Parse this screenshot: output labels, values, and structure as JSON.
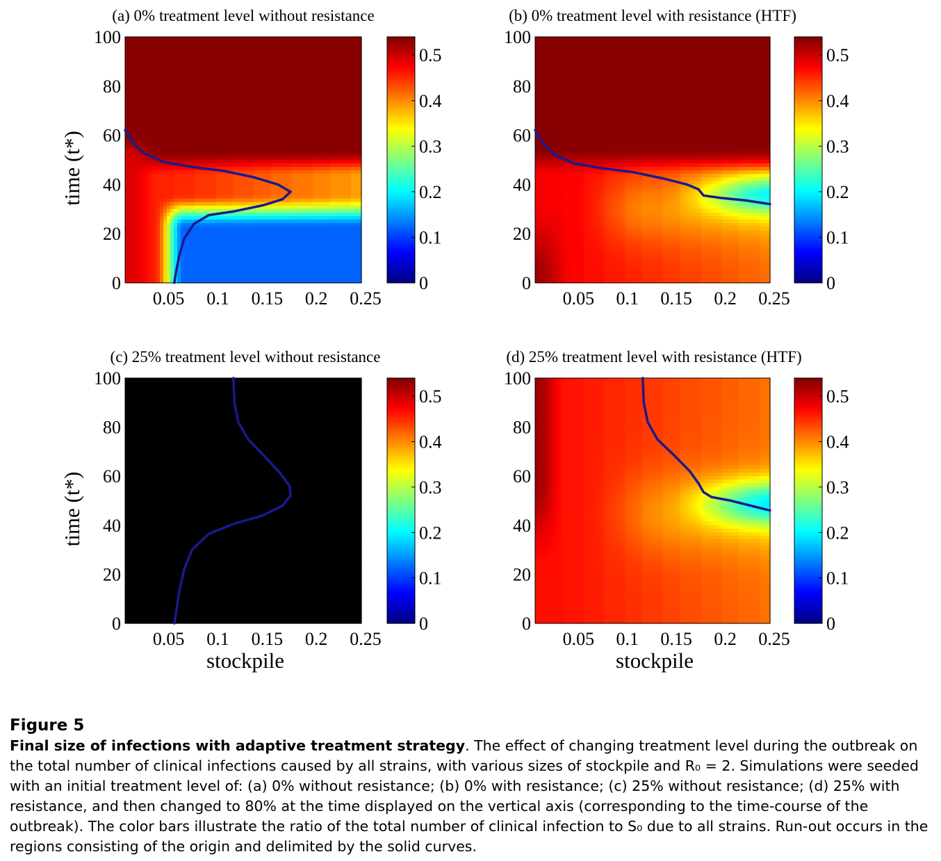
{
  "figure": {
    "label": "Figure 5",
    "caption_title": "Final size of infections with adaptive treatment strategy",
    "caption_text": ". The effect of changing treatment level during the outbreak on the total number of clinical infections caused by all strains, with various sizes of stockpile and R₀ = 2. Simulations were seeded with an initial treatment level of: (a) 0% without resistance; (b) 0% with resistance; (c) 25% without resistance; (d) 25% with resistance, and then changed to 80% at the time displayed on the vertical axis (corresponding to the time-course of the outbreak). The color bars illustrate the ratio of the total number of clinical infection to S₀ due to all strains. Run-out occurs in the regions consisting of the origin and delimited by the solid curves."
  },
  "colors": {
    "curve": "#1a1a8c",
    "colormap": "jet"
  },
  "chart_data": [
    {
      "type": "heatmap",
      "title": "(a) 0% treatment level without resistance",
      "xlabel": "",
      "ylabel": "time (t*)",
      "xlim": [
        0.01,
        0.25
      ],
      "ylim": [
        0,
        100
      ],
      "xticks": [
        "0.05",
        "0.1",
        "0.15",
        "0.2",
        "0.25"
      ],
      "yticks": [
        "0",
        "20",
        "40",
        "60",
        "80",
        "100"
      ],
      "colorbar": {
        "range": [
          0,
          0.54
        ],
        "ticks": [
          "0",
          "0.1",
          "0.2",
          "0.3",
          "0.4",
          "0.5"
        ]
      },
      "runout_curve": [
        [
          0.01,
          62
        ],
        [
          0.02,
          56
        ],
        [
          0.03,
          52.5
        ],
        [
          0.05,
          49
        ],
        [
          0.08,
          47
        ],
        [
          0.11,
          45.5
        ],
        [
          0.14,
          43
        ],
        [
          0.165,
          40
        ],
        [
          0.178,
          37
        ],
        [
          0.17,
          34
        ],
        [
          0.15,
          31.5
        ],
        [
          0.12,
          29
        ],
        [
          0.095,
          27.5
        ],
        [
          0.08,
          24
        ],
        [
          0.07,
          18
        ],
        [
          0.065,
          11
        ],
        [
          0.062,
          5
        ],
        [
          0.06,
          0
        ]
      ]
    },
    {
      "type": "heatmap",
      "title": "(b) 0% treatment level with resistance (HTF)",
      "xlabel": "",
      "ylabel": "",
      "xlim": [
        0.01,
        0.25
      ],
      "ylim": [
        0,
        100
      ],
      "xticks": [
        "0.05",
        "0.1",
        "0.15",
        "0.2",
        "0.25"
      ],
      "yticks": [
        "0",
        "20",
        "40",
        "60",
        "80",
        "100"
      ],
      "colorbar": {
        "range": [
          0,
          0.54
        ],
        "ticks": [
          "0",
          "0.1",
          "0.2",
          "0.3",
          "0.4",
          "0.5"
        ]
      },
      "runout_curve": [
        [
          0.01,
          62
        ],
        [
          0.02,
          56
        ],
        [
          0.03,
          52
        ],
        [
          0.05,
          48.5
        ],
        [
          0.08,
          46.5
        ],
        [
          0.11,
          45
        ],
        [
          0.14,
          42.5
        ],
        [
          0.165,
          40
        ],
        [
          0.177,
          38
        ],
        [
          0.182,
          35.5
        ],
        [
          0.2,
          34.5
        ],
        [
          0.225,
          33.5
        ],
        [
          0.25,
          32
        ]
      ]
    },
    {
      "type": "heatmap",
      "title": "(c) 25% treatment level without resistance",
      "xlabel": "stockpile",
      "ylabel": "time (t*)",
      "xlim": [
        0.01,
        0.25
      ],
      "ylim": [
        0,
        100
      ],
      "xticks": [
        "0.05",
        "0.1",
        "0.15",
        "0.2",
        "0.25"
      ],
      "yticks": [
        "0",
        "20",
        "40",
        "60",
        "80",
        "100"
      ],
      "colorbar": {
        "range": [
          0,
          0.54
        ],
        "ticks": [
          "0",
          "0.1",
          "0.2",
          "0.3",
          "0.4",
          "0.5"
        ]
      },
      "runout_curve": [
        [
          0.12,
          100
        ],
        [
          0.121,
          90
        ],
        [
          0.125,
          82
        ],
        [
          0.135,
          75
        ],
        [
          0.152,
          68
        ],
        [
          0.168,
          61
        ],
        [
          0.177,
          56
        ],
        [
          0.178,
          52
        ],
        [
          0.17,
          48
        ],
        [
          0.15,
          44
        ],
        [
          0.12,
          40.5
        ],
        [
          0.095,
          36.5
        ],
        [
          0.078,
          30
        ],
        [
          0.07,
          22
        ],
        [
          0.065,
          13
        ],
        [
          0.062,
          5
        ],
        [
          0.06,
          0
        ]
      ]
    },
    {
      "type": "heatmap",
      "title": "(d) 25% treatment level with resistance (HTF)",
      "xlabel": "stockpile",
      "ylabel": "",
      "xlim": [
        0.01,
        0.25
      ],
      "ylim": [
        0,
        100
      ],
      "xticks": [
        "0.05",
        "0.1",
        "0.15",
        "0.2",
        "0.25"
      ],
      "yticks": [
        "0",
        "20",
        "40",
        "60",
        "80",
        "100"
      ],
      "colorbar": {
        "range": [
          0,
          0.54
        ],
        "ticks": [
          "0",
          "0.1",
          "0.2",
          "0.3",
          "0.4",
          "0.5"
        ]
      },
      "runout_curve": [
        [
          0.12,
          100
        ],
        [
          0.121,
          90
        ],
        [
          0.125,
          82
        ],
        [
          0.135,
          75
        ],
        [
          0.152,
          68.5
        ],
        [
          0.168,
          62
        ],
        [
          0.177,
          57
        ],
        [
          0.182,
          53.5
        ],
        [
          0.19,
          51.5
        ],
        [
          0.21,
          50
        ],
        [
          0.23,
          48
        ],
        [
          0.25,
          46
        ]
      ]
    }
  ]
}
